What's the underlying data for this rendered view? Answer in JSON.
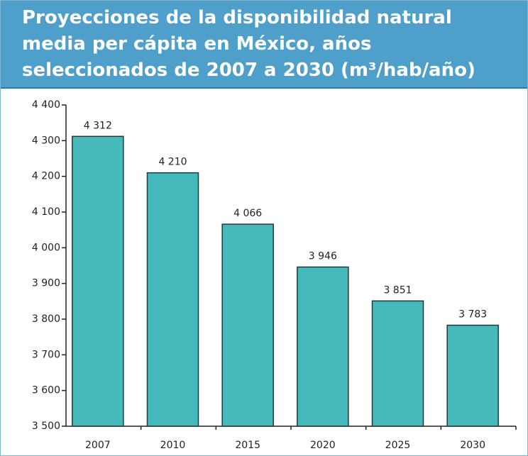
{
  "chart_data": {
    "type": "bar",
    "title": "Proyecciones de la disponibilidad natural media per cápita en México, años seleccionados de 2007 a 2030 (m³/hab/año)",
    "categories": [
      "2007",
      "2010",
      "2015",
      "2020",
      "2025",
      "2030"
    ],
    "values": [
      4312,
      4210,
      4066,
      3946,
      3851,
      3783
    ],
    "value_labels": [
      "4 312",
      "4 210",
      "4 066",
      "3 946",
      "3 851",
      "3 783"
    ],
    "color": "#45b9bc",
    "ylim": [
      3500,
      4400
    ],
    "yticks": [
      {
        "value": 3500,
        "label": "3 500"
      },
      {
        "value": 3600,
        "label": "3 600"
      },
      {
        "value": 3700,
        "label": "3 700"
      },
      {
        "value": 3800,
        "label": "3 800"
      },
      {
        "value": 3900,
        "label": "3 900"
      },
      {
        "value": 4000,
        "label": "4 000"
      },
      {
        "value": 4100,
        "label": "4 100"
      },
      {
        "value": 4200,
        "label": "4 200"
      },
      {
        "value": 4300,
        "label": "4 300"
      },
      {
        "value": 4400,
        "label": "4 400"
      }
    ]
  }
}
